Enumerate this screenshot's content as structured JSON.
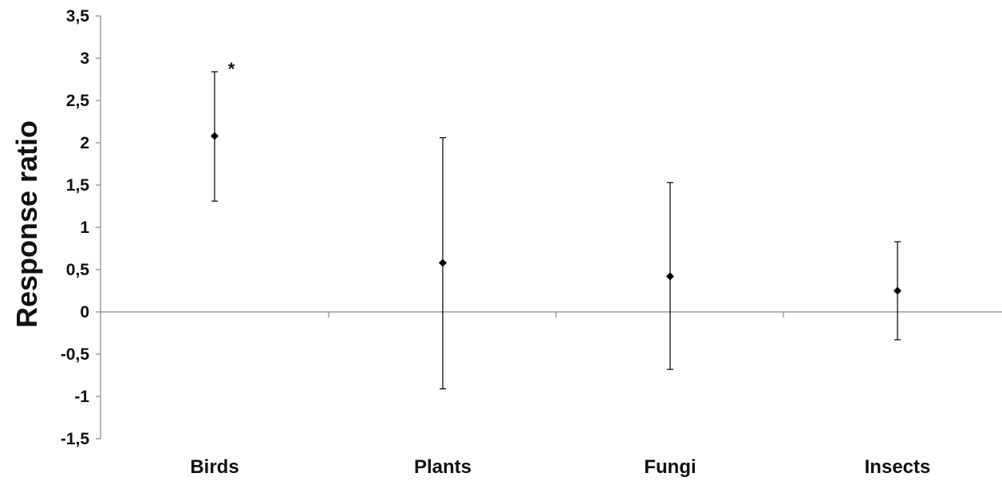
{
  "chart_data": {
    "type": "scatter",
    "title": "",
    "xlabel": "",
    "ylabel": "Response ratio",
    "ylim": [
      -1.5,
      3.5
    ],
    "ytick_step": 0.5,
    "ytick_labels": [
      "3,5",
      "3",
      "2,5",
      "2",
      "1,5",
      "1",
      "0,5",
      "0",
      "-0,5",
      "-1",
      "-1,5"
    ],
    "categories": [
      "Birds",
      "Plants",
      "Fungi",
      "Insects"
    ],
    "series": [
      {
        "values": [
          2.08,
          0.58,
          0.42,
          0.25
        ],
        "lower": [
          1.31,
          -0.91,
          -0.68,
          -0.33
        ],
        "upper": [
          2.84,
          2.06,
          1.53,
          0.83
        ]
      }
    ],
    "annotations": [
      {
        "category": "Birds",
        "text": "*"
      }
    ],
    "grid": false,
    "legend": "none",
    "colors": {
      "marker": "#000000",
      "axis": "#888888",
      "text": "#111111"
    }
  }
}
